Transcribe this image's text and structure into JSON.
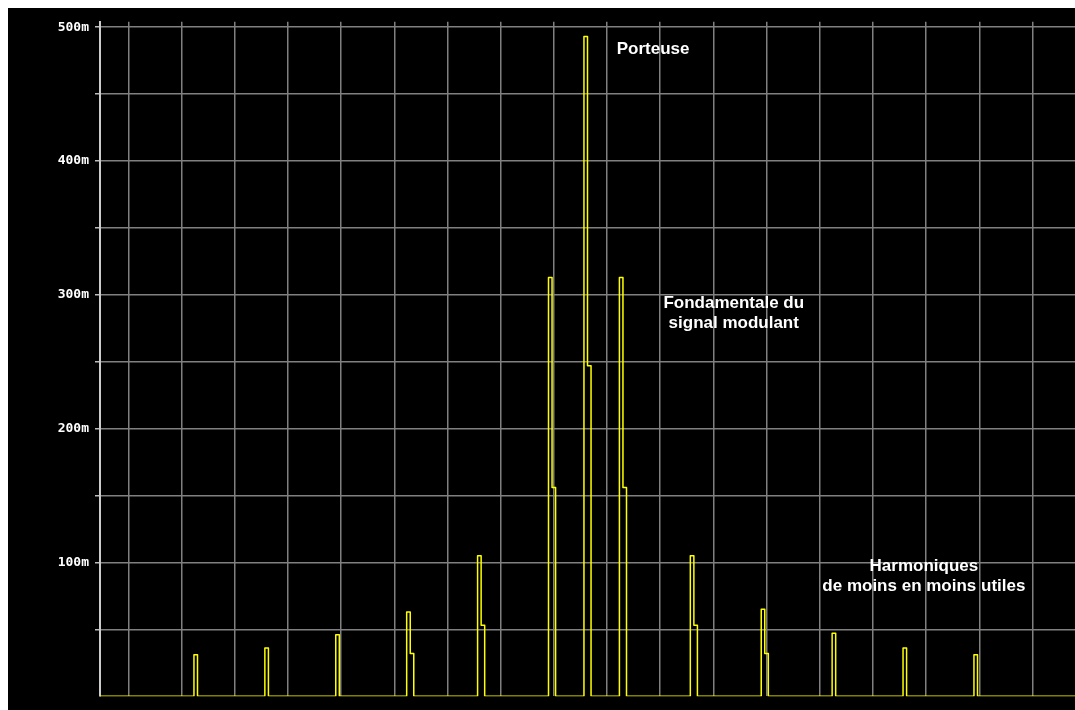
{
  "chart_data": {
    "type": "step",
    "ylim": [
      0,
      504
    ],
    "categories": [
      null,
      null,
      null,
      null,
      null,
      null,
      null,
      null,
      null,
      null,
      null,
      null,
      null,
      null,
      null,
      null,
      null,
      null,
      null,
      null,
      null,
      null,
      null,
      null,
      null,
      null,
      null,
      null,
      null,
      null,
      null,
      null,
      null,
      null,
      null,
      null,
      null,
      null,
      null,
      null,
      null,
      null,
      null,
      null,
      null,
      null,
      null,
      null,
      null,
      null,
      null,
      null,
      null,
      null,
      null,
      null,
      null,
      null,
      null,
      null,
      null,
      null,
      null,
      null,
      null,
      null,
      null,
      null,
      null,
      null,
      null,
      null,
      null,
      null,
      null,
      null,
      null,
      null,
      null,
      null,
      null,
      null,
      null,
      null,
      null,
      null,
      null,
      null,
      null,
      null,
      null,
      null,
      null,
      null,
      null,
      null,
      null,
      null,
      null,
      null,
      null,
      null,
      null,
      null,
      null,
      null,
      null,
      null,
      null,
      null,
      null,
      null,
      null,
      null,
      null,
      null,
      null,
      null,
      null,
      null,
      null,
      null,
      null,
      null,
      null,
      null,
      null,
      null,
      null,
      null,
      null,
      null,
      null,
      null,
      null,
      null,
      null,
      null,
      null,
      null,
      null,
      null,
      null,
      null,
      null,
      null,
      null,
      null,
      null,
      null,
      null,
      null,
      null,
      null,
      null,
      null,
      null,
      null,
      null,
      null,
      null,
      null,
      null,
      null,
      null,
      null,
      null,
      null,
      null,
      null,
      null,
      null,
      null,
      null,
      null,
      null,
      null,
      null,
      null,
      null,
      null,
      null,
      null,
      null,
      null,
      null,
      null,
      null,
      null,
      null,
      null,
      null,
      null,
      null,
      null,
      null,
      null,
      null,
      null,
      null,
      null,
      null,
      null,
      null,
      null,
      null,
      null,
      null,
      null,
      null,
      null,
      null,
      null,
      null,
      null,
      null,
      null,
      null,
      null,
      null,
      null,
      null,
      null,
      null,
      null,
      null,
      null,
      null,
      null,
      null,
      null,
      null,
      null,
      null,
      null,
      null,
      null,
      null,
      null,
      null,
      null,
      null,
      null,
      null,
      null,
      null,
      null,
      null,
      null,
      null,
      null,
      null,
      null,
      null,
      null,
      null,
      null,
      null,
      null,
      null,
      null,
      null,
      null,
      null,
      null,
      null,
      null,
      null,
      null,
      null,
      null,
      null,
      null,
      null,
      null,
      null
    ],
    "yticks": [
      {
        "value": 50,
        "label": null
      },
      {
        "value": 100,
        "label": "100m"
      },
      {
        "value": 150,
        "label": null
      },
      {
        "value": 200,
        "label": "200m"
      },
      {
        "value": 250,
        "label": null
      },
      {
        "value": 300,
        "label": "300m"
      },
      {
        "value": 350,
        "label": null
      },
      {
        "value": 400,
        "label": "400m"
      },
      {
        "value": 450,
        "label": null
      },
      {
        "value": 500,
        "label": "500m"
      }
    ],
    "tick_labels": "y",
    "grid": true,
    "legend": false,
    "series": [
      {
        "color": "#ffff00",
        "values": [
          0,
          0,
          0,
          0,
          0,
          0,
          0,
          0,
          0,
          0,
          0,
          0,
          0,
          0,
          0,
          0,
          0,
          0,
          0,
          0,
          0,
          0,
          0,
          0,
          0,
          0,
          0,
          31,
          0,
          0,
          0,
          0,
          0,
          0,
          0,
          0,
          0,
          0,
          0,
          0,
          0,
          0,
          0,
          0,
          0,
          0,
          0,
          36,
          0,
          0,
          0,
          0,
          0,
          0,
          0,
          0,
          0,
          0,
          0,
          0,
          0,
          0,
          0,
          0,
          0,
          0,
          0,
          46,
          0,
          0,
          0,
          0,
          0,
          0,
          0,
          0,
          0,
          0,
          0,
          0,
          0,
          0,
          0,
          0,
          0,
          0,
          0,
          63,
          32,
          0,
          0,
          0,
          0,
          0,
          0,
          0,
          0,
          0,
          0,
          0,
          0,
          0,
          0,
          0,
          0,
          0,
          0,
          105,
          53,
          0,
          0,
          0,
          0,
          0,
          0,
          0,
          0,
          0,
          0,
          0,
          0,
          0,
          0,
          0,
          0,
          0,
          0,
          313,
          156,
          0,
          0,
          0,
          0,
          0,
          0,
          0,
          0,
          493,
          247,
          0,
          0,
          0,
          0,
          0,
          0,
          0,
          0,
          313,
          156,
          0,
          0,
          0,
          0,
          0,
          0,
          0,
          0,
          0,
          0,
          0,
          0,
          0,
          0,
          0,
          0,
          0,
          0,
          105,
          53,
          0,
          0,
          0,
          0,
          0,
          0,
          0,
          0,
          0,
          0,
          0,
          0,
          0,
          0,
          0,
          0,
          0,
          0,
          65,
          32,
          0,
          0,
          0,
          0,
          0,
          0,
          0,
          0,
          0,
          0,
          0,
          0,
          0,
          0,
          0,
          0,
          0,
          0,
          47,
          0,
          0,
          0,
          0,
          0,
          0,
          0,
          0,
          0,
          0,
          0,
          0,
          0,
          0,
          0,
          0,
          0,
          0,
          0,
          36,
          0,
          0,
          0,
          0,
          0,
          0,
          0,
          0,
          0,
          0,
          0,
          0,
          0,
          0,
          0,
          0,
          0,
          0,
          0,
          31,
          0,
          0,
          0,
          0,
          0,
          0,
          0,
          0,
          0,
          0,
          0,
          0,
          0,
          0,
          0,
          0,
          0,
          0,
          0,
          0,
          0,
          0,
          0,
          0,
          0,
          0,
          0,
          0
        ]
      }
    ],
    "annotations": [
      "Porteuse",
      "Fondamentale du\nsignal modulant",
      "Harmoniques\nde moins en moins utiles"
    ]
  }
}
